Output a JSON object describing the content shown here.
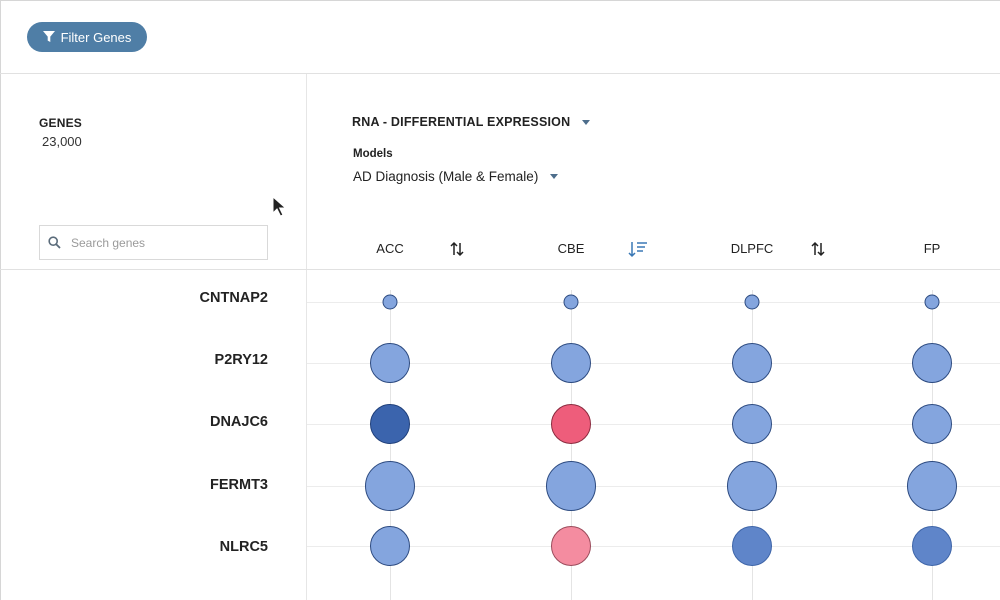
{
  "toolbar": {
    "filter_label": "Filter Genes",
    "filter_icon": "filter-icon"
  },
  "genes": {
    "title": "GENES",
    "count": "23,000"
  },
  "search": {
    "placeholder": "Search genes",
    "value": ""
  },
  "analysis": {
    "title": "RNA - DIFFERENTIAL EXPRESSION"
  },
  "models": {
    "label": "Models",
    "selected": "AD Diagnosis (Male & Female)"
  },
  "colors": {
    "brand": "#4f7ea6",
    "neutral_blue": "#84a5de",
    "dark_blue": "#3b64ad",
    "mid_blue": "#5f85c9",
    "red": "#ee5d7b",
    "pink": "#f48ca0"
  },
  "columns": [
    {
      "label": "ACC",
      "sort": "sortable"
    },
    {
      "label": "CBE",
      "sort": "active-desc"
    },
    {
      "label": "DLPFC",
      "sort": "sortable"
    },
    {
      "label": "FP",
      "sort": "none"
    }
  ],
  "rows": [
    {
      "gene": "CNTNAP2",
      "cells": [
        {
          "size": "small",
          "color": "neutral_blue"
        },
        {
          "size": "small",
          "color": "neutral_blue"
        },
        {
          "size": "small",
          "color": "neutral_blue"
        },
        {
          "size": "small",
          "color": "neutral_blue"
        }
      ]
    },
    {
      "gene": "P2RY12",
      "cells": [
        {
          "size": "medium",
          "color": "neutral_blue"
        },
        {
          "size": "medium",
          "color": "neutral_blue"
        },
        {
          "size": "medium",
          "color": "neutral_blue"
        },
        {
          "size": "medium",
          "color": "neutral_blue"
        }
      ]
    },
    {
      "gene": "DNAJC6",
      "cells": [
        {
          "size": "medium",
          "color": "dark_blue"
        },
        {
          "size": "medium",
          "color": "red"
        },
        {
          "size": "medium",
          "color": "neutral_blue"
        },
        {
          "size": "medium",
          "color": "neutral_blue"
        }
      ]
    },
    {
      "gene": "FERMT3",
      "cells": [
        {
          "size": "large",
          "color": "neutral_blue"
        },
        {
          "size": "large",
          "color": "neutral_blue"
        },
        {
          "size": "large",
          "color": "neutral_blue"
        },
        {
          "size": "large",
          "color": "neutral_blue"
        }
      ]
    },
    {
      "gene": "NLRC5",
      "cells": [
        {
          "size": "medium",
          "color": "neutral_blue"
        },
        {
          "size": "medium",
          "color": "pink"
        },
        {
          "size": "medium",
          "color": "mid_blue"
        },
        {
          "size": "medium",
          "color": "mid_blue"
        }
      ]
    }
  ]
}
